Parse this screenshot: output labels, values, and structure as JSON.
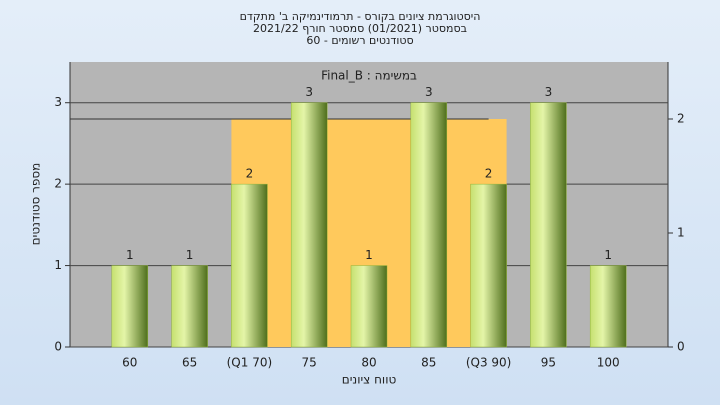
{
  "chart_data": {
    "type": "bar",
    "title": [
      "היסטוגרמת ציונים בקורס - תרמודינמיקה ב' מתקדם",
      "בסמסטר (01/2021) סמסטר חורף 2021/22",
      "60 - סטודנטים רשומים"
    ],
    "x_label": "טווח ציונים",
    "y_label": "מספר סטודנטים",
    "categories": [
      "60",
      "65",
      "(Q1 70)",
      "75",
      "80",
      "85",
      "(Q3 90)",
      "95",
      "100"
    ],
    "series": [
      {
        "name": "במשימה : Final_B",
        "color": "#8fb33a",
        "values": [
          1,
          1,
          2,
          3,
          1,
          3,
          2,
          3,
          1
        ]
      }
    ],
    "ylim": [
      0,
      3.5
    ],
    "yticks": [
      0,
      1,
      2,
      3
    ],
    "y2lim": [
      0,
      2.5
    ],
    "y2ticks": [
      0,
      1,
      2
    ],
    "box": {
      "start": "(Q1 70)",
      "end": "(Q3 90)",
      "value": 2,
      "axis": "y2",
      "color": "#ffc95c"
    },
    "grid": true
  }
}
